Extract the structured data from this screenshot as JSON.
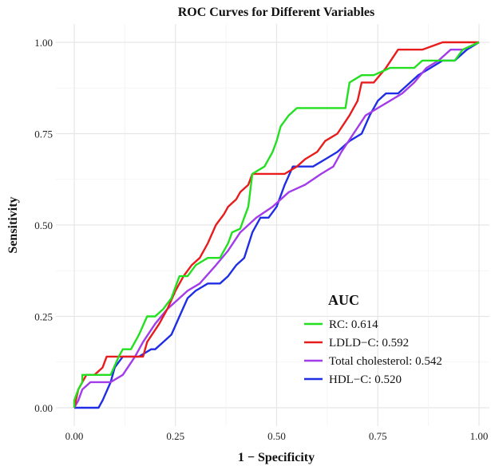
{
  "chart_data": {
    "type": "line",
    "title": "ROC Curves for Different Variables",
    "xlabel": "1 − Specificity",
    "ylabel": "Sensitivity",
    "xlim": [
      0,
      1
    ],
    "ylim": [
      0,
      1
    ],
    "x_ticks": [
      "0.00",
      "0.25",
      "0.50",
      "0.75",
      "1.00"
    ],
    "y_ticks": [
      "0.00",
      "0.25",
      "0.50",
      "0.75",
      "1.00"
    ],
    "grid": true,
    "legend": {
      "title": "AUC",
      "position": "bottom-right"
    },
    "series": [
      {
        "name": "RC: 0.614",
        "color": "#22e01f",
        "x": [
          0.0,
          0.0,
          0.01,
          0.02,
          0.02,
          0.04,
          0.06,
          0.09,
          0.11,
          0.12,
          0.14,
          0.16,
          0.18,
          0.2,
          0.22,
          0.24,
          0.26,
          0.28,
          0.3,
          0.33,
          0.36,
          0.38,
          0.39,
          0.41,
          0.42,
          0.43,
          0.44,
          0.47,
          0.49,
          0.5,
          0.51,
          0.53,
          0.55,
          0.59,
          0.62,
          0.67,
          0.68,
          0.71,
          0.74,
          0.78,
          0.81,
          0.84,
          0.86,
          0.9,
          0.94,
          0.96,
          1.0
        ],
        "y": [
          0.0,
          0.02,
          0.05,
          0.07,
          0.09,
          0.09,
          0.09,
          0.09,
          0.14,
          0.16,
          0.16,
          0.2,
          0.25,
          0.25,
          0.27,
          0.3,
          0.36,
          0.36,
          0.39,
          0.41,
          0.41,
          0.45,
          0.48,
          0.49,
          0.52,
          0.55,
          0.64,
          0.66,
          0.7,
          0.73,
          0.77,
          0.8,
          0.82,
          0.82,
          0.82,
          0.82,
          0.89,
          0.91,
          0.91,
          0.93,
          0.93,
          0.93,
          0.95,
          0.95,
          0.95,
          0.98,
          1.0
        ]
      },
      {
        "name": "LDLD−C: 0.592",
        "color": "#e81c1c",
        "x": [
          0.0,
          0.01,
          0.02,
          0.03,
          0.05,
          0.07,
          0.08,
          0.11,
          0.13,
          0.15,
          0.17,
          0.18,
          0.21,
          0.23,
          0.25,
          0.27,
          0.29,
          0.31,
          0.33,
          0.35,
          0.37,
          0.38,
          0.4,
          0.41,
          0.43,
          0.44,
          0.46,
          0.52,
          0.55,
          0.57,
          0.6,
          0.62,
          0.65,
          0.68,
          0.7,
          0.71,
          0.74,
          0.77,
          0.8,
          0.83,
          0.86,
          0.91,
          0.94,
          1.0
        ],
        "y": [
          0.0,
          0.05,
          0.07,
          0.09,
          0.09,
          0.11,
          0.14,
          0.14,
          0.14,
          0.14,
          0.14,
          0.18,
          0.23,
          0.27,
          0.32,
          0.36,
          0.39,
          0.41,
          0.45,
          0.5,
          0.53,
          0.55,
          0.57,
          0.59,
          0.61,
          0.64,
          0.64,
          0.64,
          0.66,
          0.68,
          0.7,
          0.73,
          0.75,
          0.8,
          0.84,
          0.89,
          0.89,
          0.93,
          0.98,
          0.98,
          0.98,
          1.0,
          1.0,
          1.0
        ]
      },
      {
        "name": "Total cholesterol: 0.542",
        "color": "#a23bea",
        "x": [
          0.0,
          0.01,
          0.02,
          0.04,
          0.06,
          0.09,
          0.12,
          0.15,
          0.17,
          0.2,
          0.23,
          0.26,
          0.28,
          0.31,
          0.35,
          0.38,
          0.41,
          0.45,
          0.49,
          0.53,
          0.57,
          0.61,
          0.64,
          0.66,
          0.69,
          0.72,
          0.75,
          0.78,
          0.81,
          0.84,
          0.87,
          0.9,
          0.93,
          0.96,
          1.0
        ],
        "y": [
          0.0,
          0.02,
          0.05,
          0.07,
          0.07,
          0.07,
          0.09,
          0.14,
          0.18,
          0.23,
          0.27,
          0.3,
          0.32,
          0.34,
          0.39,
          0.43,
          0.48,
          0.52,
          0.55,
          0.59,
          0.61,
          0.64,
          0.66,
          0.7,
          0.75,
          0.8,
          0.82,
          0.84,
          0.86,
          0.89,
          0.93,
          0.95,
          0.98,
          0.98,
          1.0
        ]
      },
      {
        "name": "HDL−C: 0.520",
        "color": "#1f2de5",
        "x": [
          0.0,
          0.03,
          0.06,
          0.07,
          0.09,
          0.1,
          0.12,
          0.16,
          0.19,
          0.2,
          0.22,
          0.24,
          0.26,
          0.28,
          0.3,
          0.33,
          0.36,
          0.38,
          0.4,
          0.42,
          0.44,
          0.46,
          0.48,
          0.5,
          0.52,
          0.54,
          0.56,
          0.59,
          0.62,
          0.65,
          0.68,
          0.71,
          0.73,
          0.75,
          0.77,
          0.8,
          0.83,
          0.85,
          0.88,
          0.91,
          0.94,
          0.97,
          1.0
        ],
        "y": [
          0.0,
          0.0,
          0.0,
          0.02,
          0.07,
          0.11,
          0.14,
          0.14,
          0.16,
          0.16,
          0.18,
          0.2,
          0.25,
          0.3,
          0.32,
          0.34,
          0.34,
          0.36,
          0.39,
          0.41,
          0.48,
          0.52,
          0.52,
          0.55,
          0.61,
          0.66,
          0.66,
          0.66,
          0.68,
          0.7,
          0.73,
          0.75,
          0.8,
          0.84,
          0.86,
          0.86,
          0.89,
          0.91,
          0.93,
          0.95,
          0.95,
          0.98,
          1.0
        ]
      }
    ]
  }
}
